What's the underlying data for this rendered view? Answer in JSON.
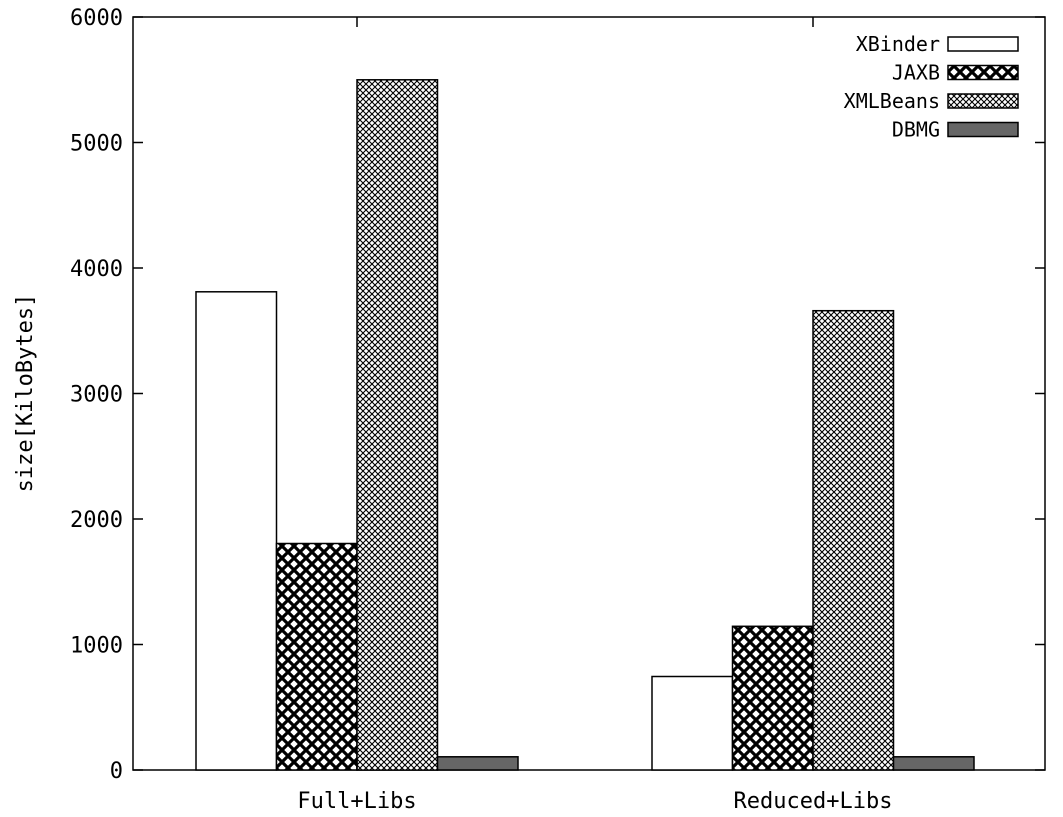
{
  "chart_data": {
    "type": "bar",
    "categories": [
      "Full+Libs",
      "Reduced+Libs"
    ],
    "series": [
      {
        "name": "XBinder",
        "values": [
          3810,
          745
        ],
        "fill": "#ffffff",
        "pattern": "none"
      },
      {
        "name": "JAXB",
        "values": [
          1805,
          1145
        ],
        "fill": "#000000",
        "pattern": "coarse-crosshatch"
      },
      {
        "name": "XMLBeans",
        "values": [
          5500,
          3660
        ],
        "fill": "#000000",
        "pattern": "fine-crosshatch"
      },
      {
        "name": "DBMG",
        "values": [
          105,
          105
        ],
        "fill": "#666666",
        "pattern": "solid"
      }
    ],
    "xlabel": "",
    "ylabel": "size[KiloBytes]",
    "ylim": [
      0,
      6000
    ],
    "yticks": [
      0,
      1000,
      2000,
      3000,
      4000,
      5000,
      6000
    ],
    "legend_position": "top-right",
    "grid": false
  }
}
